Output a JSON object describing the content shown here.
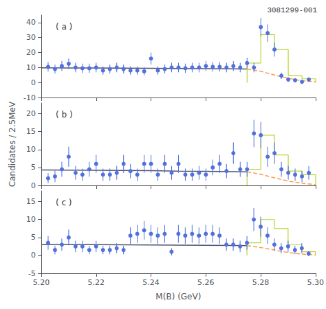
{
  "chart_data": [
    {
      "type": "errorbar",
      "title": "3081299-001",
      "annotations": [
        "( a )"
      ],
      "xlim": [
        5.2,
        5.3
      ],
      "xticks": [
        {
          "value": 5.2,
          "label": "5.20"
        },
        5.22,
        5.24,
        5.26,
        5.28,
        {
          "value": 5.3,
          "label": "5.30"
        }
      ],
      "ylim": [
        -10,
        45
      ],
      "yticks": [
        -10,
        0,
        10,
        20,
        30,
        40
      ],
      "grid": false,
      "tick_labels": "y",
      "series": [
        {
          "type": "errorbar",
          "marker": "circle",
          "x": [
            5.2025,
            5.205,
            5.2075,
            5.21,
            5.2125,
            5.215,
            5.2175,
            5.22,
            5.2225,
            5.225,
            5.2275,
            5.23,
            5.2325,
            5.235,
            5.2375,
            5.24,
            5.2425,
            5.245,
            5.2475,
            5.25,
            5.2525,
            5.255,
            5.2575,
            5.26,
            5.2625,
            5.265,
            5.2675,
            5.27,
            5.2725,
            5.275,
            5.2775,
            5.28,
            5.2825,
            5.285,
            5.2875,
            5.29,
            5.2925,
            5.295,
            5.2975
          ],
          "values": [
            10.5,
            9.0,
            11.0,
            12.5,
            10.0,
            9.5,
            9.5,
            10.0,
            8.0,
            9.0,
            10.0,
            9.0,
            8.0,
            8.0,
            7.5,
            16.0,
            8.0,
            9.0,
            10.0,
            10.0,
            9.5,
            10.0,
            10.0,
            11.0,
            10.5,
            10.5,
            10.0,
            11.0,
            10.0,
            13.0,
            10.0,
            37.0,
            33.0,
            22.0,
            4.5,
            2.0,
            1.5,
            0.5,
            2.0
          ],
          "yerr": [
            3.2,
            3.0,
            3.3,
            3.5,
            3.2,
            3.1,
            3.1,
            3.2,
            2.8,
            3.0,
            3.2,
            3.0,
            2.8,
            2.8,
            2.7,
            4.0,
            2.8,
            3.0,
            3.2,
            3.2,
            3.1,
            3.2,
            3.2,
            3.3,
            3.2,
            3.2,
            3.2,
            3.3,
            3.2,
            3.6,
            3.2,
            6.1,
            5.8,
            4.7,
            2.1,
            1.4,
            1.2,
            0.7,
            1.4
          ]
        },
        {
          "type": "step",
          "bins": [
            5.275,
            5.28,
            5.285,
            5.29,
            5.295,
            5.3
          ],
          "values": [
            13.0,
            32.0,
            22.0,
            4.5,
            2.5
          ]
        },
        {
          "type": "line",
          "line_style": "solid",
          "x": [
            5.2,
            5.21,
            5.22,
            5.23,
            5.24,
            5.25,
            5.26,
            5.27,
            5.275
          ],
          "values": [
            9.8,
            9.75,
            9.7,
            9.6,
            9.5,
            9.4,
            9.3,
            9.1,
            9.0
          ]
        },
        {
          "type": "line",
          "line_style": "dashed",
          "x": [
            5.275,
            5.28,
            5.285,
            5.29,
            5.295,
            5.3
          ],
          "values": [
            9.0,
            7.5,
            5.0,
            2.8,
            1.2,
            0.4
          ]
        }
      ]
    },
    {
      "type": "errorbar",
      "ylabel": "Candidates / 2.5MeV",
      "annotations": [
        "( b )"
      ],
      "xlim": [
        5.2,
        5.3
      ],
      "xticks": [
        {
          "value": 5.2,
          "label": "5.20"
        },
        5.22,
        5.24,
        5.26,
        5.28,
        {
          "value": 5.3,
          "label": "5.30"
        }
      ],
      "ylim": [
        0,
        23
      ],
      "yticks": [
        0,
        5,
        10,
        15,
        20
      ],
      "grid": false,
      "tick_labels": "y",
      "series": [
        {
          "type": "errorbar",
          "marker": "circle",
          "x": [
            5.2025,
            5.205,
            5.2075,
            5.21,
            5.2125,
            5.215,
            5.2175,
            5.22,
            5.2225,
            5.225,
            5.2275,
            5.23,
            5.2325,
            5.235,
            5.2375,
            5.24,
            5.2425,
            5.245,
            5.2475,
            5.25,
            5.2525,
            5.255,
            5.2575,
            5.26,
            5.2625,
            5.265,
            5.2675,
            5.27,
            5.2725,
            5.275,
            5.2775,
            5.28,
            5.2825,
            5.285,
            5.2875,
            5.29,
            5.2925,
            5.295,
            5.2975
          ],
          "values": [
            2.0,
            2.5,
            4.5,
            8.0,
            3.5,
            3.0,
            4.5,
            6.0,
            3.0,
            3.0,
            3.5,
            6.0,
            4.0,
            3.0,
            6.0,
            6.0,
            3.0,
            6.0,
            3.5,
            6.0,
            3.0,
            3.0,
            3.5,
            3.0,
            5.0,
            6.0,
            4.0,
            9.0,
            4.5,
            4.5,
            14.5,
            14.0,
            8.0,
            9.0,
            4.5,
            3.5,
            3.0,
            2.5,
            3.5
          ],
          "yerr": [
            1.4,
            1.6,
            2.1,
            2.8,
            1.9,
            1.7,
            2.1,
            2.5,
            1.7,
            1.7,
            1.9,
            2.5,
            2.0,
            1.7,
            2.5,
            2.5,
            1.7,
            2.5,
            1.9,
            2.5,
            1.7,
            1.7,
            1.9,
            1.7,
            2.2,
            2.5,
            2.0,
            3.0,
            2.1,
            2.1,
            3.8,
            3.7,
            2.8,
            3.0,
            2.1,
            1.9,
            1.7,
            1.6,
            1.9
          ]
        },
        {
          "type": "step",
          "bins": [
            5.275,
            5.28,
            5.285,
            5.29,
            5.295,
            5.3
          ],
          "values": [
            4.5,
            14.0,
            8.5,
            4.0,
            3.0
          ]
        },
        {
          "type": "line",
          "line_style": "solid",
          "x": [
            5.2,
            5.21,
            5.22,
            5.23,
            5.24,
            5.25,
            5.26,
            5.27,
            5.275
          ],
          "values": [
            4.3,
            4.25,
            4.2,
            4.15,
            4.1,
            4.0,
            3.95,
            3.85,
            3.8
          ]
        },
        {
          "type": "line",
          "line_style": "dashed",
          "x": [
            5.275,
            5.28,
            5.285,
            5.29,
            5.295,
            5.3
          ],
          "values": [
            3.8,
            3.1,
            2.1,
            1.2,
            0.6,
            0.2
          ]
        }
      ]
    },
    {
      "type": "errorbar",
      "xlabel": "M(B) (GeV)",
      "annotations": [
        "( c )"
      ],
      "xlim": [
        5.2,
        5.3
      ],
      "xticks": [
        {
          "value": 5.2,
          "label": "5.20"
        },
        5.22,
        5.24,
        5.26,
        5.28,
        {
          "value": 5.3,
          "label": "5.30"
        }
      ],
      "ylim": [
        -5,
        18
      ],
      "yticks": [
        -5,
        0,
        5,
        10,
        15
      ],
      "grid": false,
      "series": [
        {
          "type": "errorbar",
          "marker": "circle",
          "x": [
            5.2025,
            5.205,
            5.2075,
            5.21,
            5.2125,
            5.215,
            5.2175,
            5.22,
            5.2225,
            5.225,
            5.2275,
            5.23,
            5.2325,
            5.235,
            5.2375,
            5.24,
            5.2425,
            5.245,
            5.2475,
            5.25,
            5.2525,
            5.255,
            5.2575,
            5.26,
            5.2625,
            5.265,
            5.2675,
            5.27,
            5.2725,
            5.275,
            5.2775,
            5.28,
            5.2825,
            5.285,
            5.2875,
            5.29,
            5.2925,
            5.295,
            5.2975
          ],
          "values": [
            3.5,
            1.5,
            3.0,
            5.0,
            2.5,
            2.5,
            1.5,
            2.5,
            1.5,
            1.5,
            2.0,
            1.5,
            5.5,
            6.0,
            7.0,
            6.0,
            5.5,
            6.0,
            1.0,
            6.0,
            5.5,
            6.0,
            5.5,
            6.0,
            6.0,
            5.5,
            3.0,
            3.0,
            2.5,
            3.5,
            10.0,
            8.0,
            5.5,
            3.0,
            2.0,
            2.5,
            1.5,
            2.0,
            0.5
          ],
          "yerr": [
            1.9,
            1.2,
            1.7,
            2.2,
            1.6,
            1.6,
            1.2,
            1.6,
            1.2,
            1.2,
            1.4,
            1.2,
            2.3,
            2.5,
            2.6,
            2.5,
            2.3,
            2.5,
            1.0,
            2.5,
            2.3,
            2.5,
            2.3,
            2.5,
            2.5,
            2.3,
            1.7,
            1.7,
            1.6,
            1.9,
            3.2,
            2.8,
            2.3,
            1.7,
            1.4,
            1.6,
            1.2,
            1.4,
            0.7
          ]
        },
        {
          "type": "step",
          "bins": [
            5.275,
            5.28,
            5.285,
            5.29,
            5.295,
            5.3
          ],
          "values": [
            3.5,
            10.0,
            7.5,
            3.0,
            1.0
          ]
        },
        {
          "type": "line",
          "line_style": "solid",
          "x": [
            5.2,
            5.21,
            5.22,
            5.23,
            5.24,
            5.25,
            5.26,
            5.27,
            5.275
          ],
          "values": [
            3.0,
            3.0,
            2.98,
            2.95,
            2.92,
            2.88,
            2.83,
            2.75,
            2.7
          ]
        },
        {
          "type": "line",
          "line_style": "dashed",
          "x": [
            5.275,
            5.28,
            5.285,
            5.29,
            5.295,
            5.3
          ],
          "values": [
            2.7,
            2.2,
            1.5,
            0.8,
            0.35,
            0.1
          ]
        }
      ]
    }
  ]
}
